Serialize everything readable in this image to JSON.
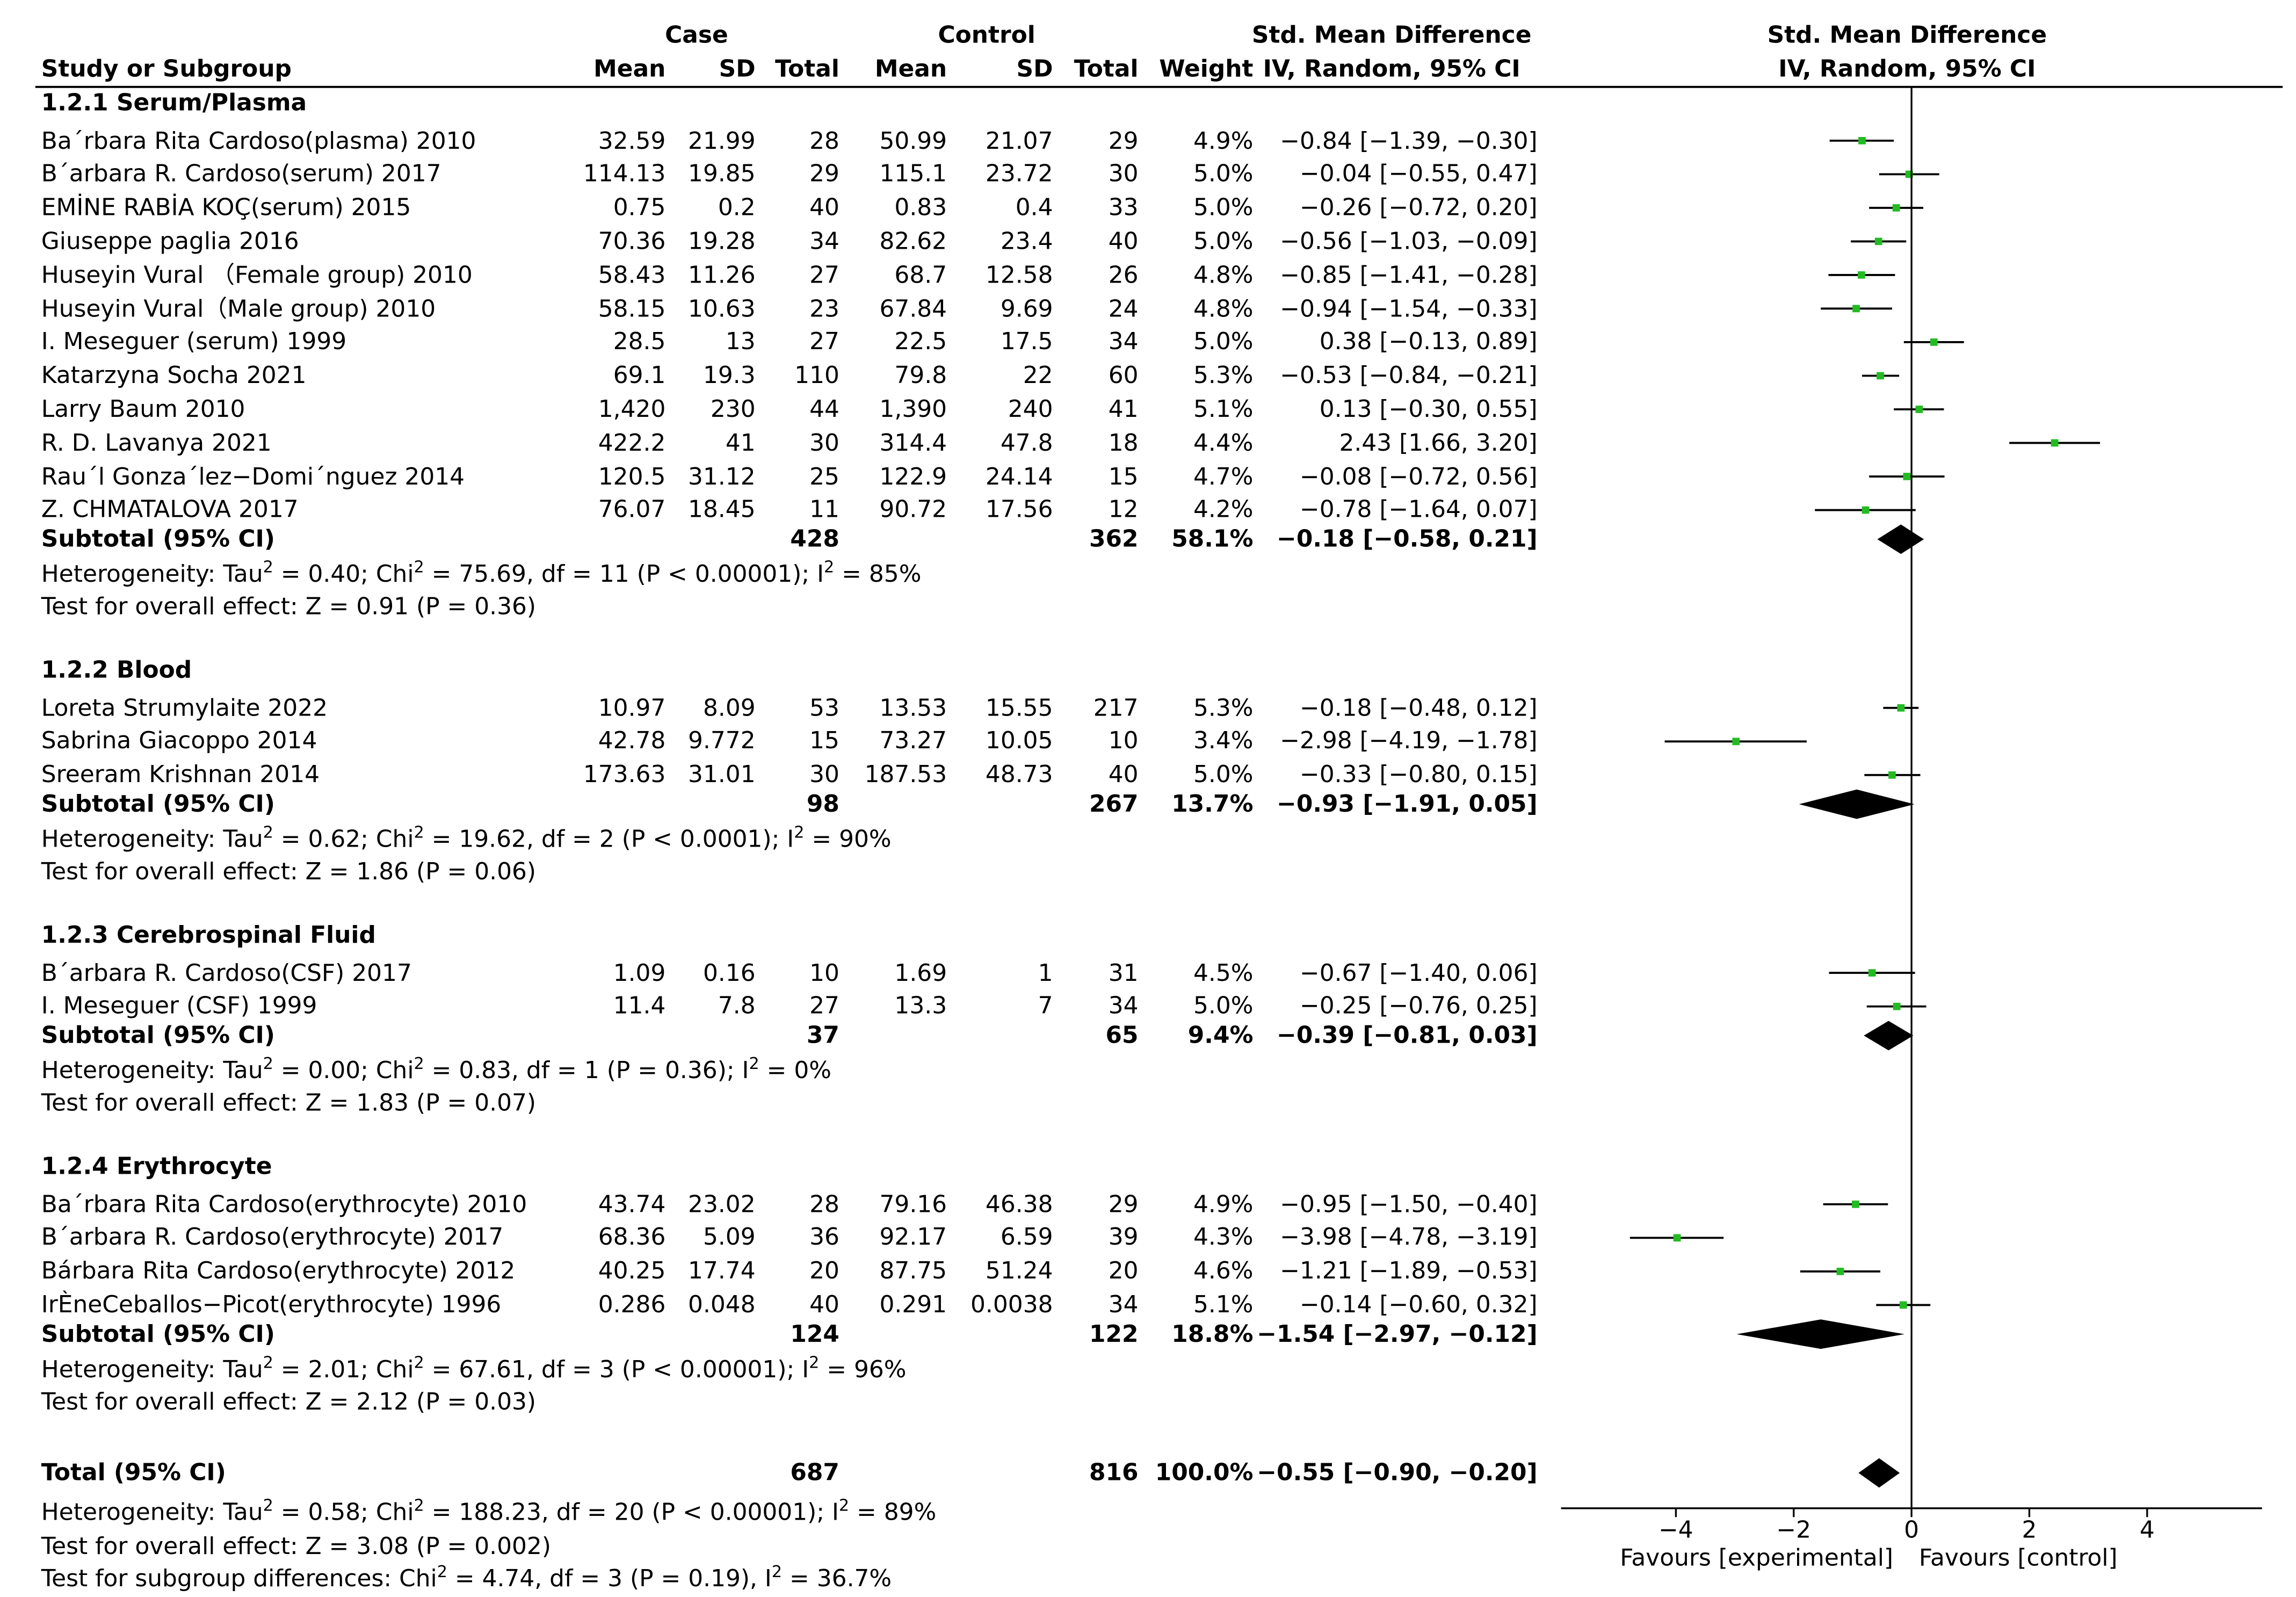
{
  "header": {
    "case_group": "Case",
    "control_group": "Control",
    "smd_table_title": "Std. Mean Difference",
    "smd_plot_title": "Std. Mean Difference",
    "col_study": "Study or Subgroup",
    "col_case_mean": "Mean",
    "col_case_sd": "SD",
    "col_case_total": "Total",
    "col_control_mean": "Mean",
    "col_control_sd": "SD",
    "col_control_total": "Total",
    "col_weight": "Weight",
    "col_ci": "IV, Random, 95% CI",
    "plot_method": "IV, Random, 95% CI"
  },
  "axis": {
    "ticks": [
      "-4",
      "-2",
      "0",
      "2",
      "4"
    ],
    "favours_left": "Favours [experimental]",
    "favours_right": "Favours [control]"
  },
  "chart_data": {
    "type": "forest",
    "title": "Std. Mean Difference",
    "method": "IV, Random, 95% CI",
    "xlim": [
      -6,
      6
    ],
    "xticks": [
      -4,
      -2,
      0,
      2,
      4
    ],
    "xlabel_left": "Favours [experimental]",
    "xlabel_right": "Favours [control]",
    "subgroups": [
      {
        "title": "1.2.1 Serum/Plasma",
        "studies": [
          {
            "name": "Ba´rbara Rita Cardoso(plasma) 2010",
            "case_mean": "32.59",
            "case_sd": "21.99",
            "case_total": "28",
            "ctrl_mean": "50.99",
            "ctrl_sd": "21.07",
            "ctrl_total": "29",
            "weight": "4.9%",
            "ci_text": "-0.84 [-1.39, -0.30]",
            "est": -0.84,
            "lo": -1.39,
            "hi": -0.3
          },
          {
            "name": "B´arbara R. Cardoso(serum) 2017",
            "case_mean": "114.13",
            "case_sd": "19.85",
            "case_total": "29",
            "ctrl_mean": "115.1",
            "ctrl_sd": "23.72",
            "ctrl_total": "30",
            "weight": "5.0%",
            "ci_text": "-0.04 [-0.55, 0.47]",
            "est": -0.04,
            "lo": -0.55,
            "hi": 0.47
          },
          {
            "name": "EMİNE RABİA KOÇ(serum) 2015",
            "case_mean": "0.75",
            "case_sd": "0.2",
            "case_total": "40",
            "ctrl_mean": "0.83",
            "ctrl_sd": "0.4",
            "ctrl_total": "33",
            "weight": "5.0%",
            "ci_text": "-0.26 [-0.72, 0.20]",
            "est": -0.26,
            "lo": -0.72,
            "hi": 0.2
          },
          {
            "name": "Giuseppe paglia 2016",
            "case_mean": "70.36",
            "case_sd": "19.28",
            "case_total": "34",
            "ctrl_mean": "82.62",
            "ctrl_sd": "23.4",
            "ctrl_total": "40",
            "weight": "5.0%",
            "ci_text": "-0.56 [-1.03, -0.09]",
            "est": -0.56,
            "lo": -1.03,
            "hi": -0.09
          },
          {
            "name": "Huseyin Vural （Female group) 2010",
            "case_mean": "58.43",
            "case_sd": "11.26",
            "case_total": "27",
            "ctrl_mean": "68.7",
            "ctrl_sd": "12.58",
            "ctrl_total": "26",
            "weight": "4.8%",
            "ci_text": "-0.85 [-1.41, -0.28]",
            "est": -0.85,
            "lo": -1.41,
            "hi": -0.28
          },
          {
            "name": "Huseyin Vural（Male group) 2010",
            "case_mean": "58.15",
            "case_sd": "10.63",
            "case_total": "23",
            "ctrl_mean": "67.84",
            "ctrl_sd": "9.69",
            "ctrl_total": "24",
            "weight": "4.8%",
            "ci_text": "-0.94 [-1.54, -0.33]",
            "est": -0.94,
            "lo": -1.54,
            "hi": -0.33
          },
          {
            "name": "I. Meseguer (serum) 1999",
            "case_mean": "28.5",
            "case_sd": "13",
            "case_total": "27",
            "ctrl_mean": "22.5",
            "ctrl_sd": "17.5",
            "ctrl_total": "34",
            "weight": "5.0%",
            "ci_text": "0.38 [-0.13, 0.89]",
            "est": 0.38,
            "lo": -0.13,
            "hi": 0.89
          },
          {
            "name": "Katarzyna Socha 2021",
            "case_mean": "69.1",
            "case_sd": "19.3",
            "case_total": "110",
            "ctrl_mean": "79.8",
            "ctrl_sd": "22",
            "ctrl_total": "60",
            "weight": "5.3%",
            "ci_text": "-0.53 [-0.84, -0.21]",
            "est": -0.53,
            "lo": -0.84,
            "hi": -0.21
          },
          {
            "name": "Larry Baum 2010",
            "case_mean": "1,420",
            "case_sd": "230",
            "case_total": "44",
            "ctrl_mean": "1,390",
            "ctrl_sd": "240",
            "ctrl_total": "41",
            "weight": "5.1%",
            "ci_text": "0.13 [-0.30, 0.55]",
            "est": 0.13,
            "lo": -0.3,
            "hi": 0.55
          },
          {
            "name": "R. D. Lavanya 2021",
            "case_mean": "422.2",
            "case_sd": "41",
            "case_total": "30",
            "ctrl_mean": "314.4",
            "ctrl_sd": "47.8",
            "ctrl_total": "18",
            "weight": "4.4%",
            "ci_text": "2.43 [1.66, 3.20]",
            "est": 2.43,
            "lo": 1.66,
            "hi": 3.2
          },
          {
            "name": "Rau´l Gonza´lez-Domi´nguez 2014",
            "case_mean": "120.5",
            "case_sd": "31.12",
            "case_total": "25",
            "ctrl_mean": "122.9",
            "ctrl_sd": "24.14",
            "ctrl_total": "15",
            "weight": "4.7%",
            "ci_text": "-0.08 [-0.72, 0.56]",
            "est": -0.08,
            "lo": -0.72,
            "hi": 0.56
          },
          {
            "name": "Z. CHMATALOVA 2017",
            "case_mean": "76.07",
            "case_sd": "18.45",
            "case_total": "11",
            "ctrl_mean": "90.72",
            "ctrl_sd": "17.56",
            "ctrl_total": "12",
            "weight": "4.2%",
            "ci_text": "-0.78 [-1.64, 0.07]",
            "est": -0.78,
            "lo": -1.64,
            "hi": 0.07
          }
        ],
        "subtotal": {
          "label": "Subtotal (95% CI)",
          "case_total": "428",
          "ctrl_total": "362",
          "weight": "58.1%",
          "ci_text": "-0.18 [-0.58, 0.21]",
          "est": -0.18,
          "lo": -0.58,
          "hi": 0.21
        },
        "heterogeneity": {
          "pre": "Heterogeneity: Tau",
          "tau2": "0.40",
          "chi2": "75.69",
          "df": "11",
          "p": "P < 0.00001",
          "i2": "85%"
        },
        "overall": "Test for overall effect: Z = 0.91 (P = 0.36)"
      },
      {
        "title": "1.2.2 Blood",
        "studies": [
          {
            "name": "Loreta Strumylaite 2022",
            "case_mean": "10.97",
            "case_sd": "8.09",
            "case_total": "53",
            "ctrl_mean": "13.53",
            "ctrl_sd": "15.55",
            "ctrl_total": "217",
            "weight": "5.3%",
            "ci_text": "-0.18 [-0.48, 0.12]",
            "est": -0.18,
            "lo": -0.48,
            "hi": 0.12
          },
          {
            "name": "Sabrina Giacoppo 2014",
            "case_mean": "42.78",
            "case_sd": "9.772",
            "case_total": "15",
            "ctrl_mean": "73.27",
            "ctrl_sd": "10.05",
            "ctrl_total": "10",
            "weight": "3.4%",
            "ci_text": "-2.98 [-4.19, -1.78]",
            "est": -2.98,
            "lo": -4.19,
            "hi": -1.78
          },
          {
            "name": "Sreeram Krishnan 2014",
            "case_mean": "173.63",
            "case_sd": "31.01",
            "case_total": "30",
            "ctrl_mean": "187.53",
            "ctrl_sd": "48.73",
            "ctrl_total": "40",
            "weight": "5.0%",
            "ci_text": "-0.33 [-0.80, 0.15]",
            "est": -0.33,
            "lo": -0.8,
            "hi": 0.15
          }
        ],
        "subtotal": {
          "label": "Subtotal (95% CI)",
          "case_total": "98",
          "ctrl_total": "267",
          "weight": "13.7%",
          "ci_text": "-0.93 [-1.91, 0.05]",
          "est": -0.93,
          "lo": -1.91,
          "hi": 0.05
        },
        "heterogeneity": {
          "pre": "Heterogeneity: Tau",
          "tau2": "0.62",
          "chi2": "19.62",
          "df": "2",
          "p": "P < 0.0001",
          "i2": "90%"
        },
        "overall": "Test for overall effect: Z = 1.86 (P = 0.06)"
      },
      {
        "title": "1.2.3 Cerebrospinal Fluid",
        "studies": [
          {
            "name": "B´arbara R. Cardoso(CSF) 2017",
            "case_mean": "1.09",
            "case_sd": "0.16",
            "case_total": "10",
            "ctrl_mean": "1.69",
            "ctrl_sd": "1",
            "ctrl_total": "31",
            "weight": "4.5%",
            "ci_text": "-0.67 [-1.40, 0.06]",
            "est": -0.67,
            "lo": -1.4,
            "hi": 0.06
          },
          {
            "name": "I. Meseguer (CSF) 1999",
            "case_mean": "11.4",
            "case_sd": "7.8",
            "case_total": "27",
            "ctrl_mean": "13.3",
            "ctrl_sd": "7",
            "ctrl_total": "34",
            "weight": "5.0%",
            "ci_text": "-0.25 [-0.76, 0.25]",
            "est": -0.25,
            "lo": -0.76,
            "hi": 0.25
          }
        ],
        "subtotal": {
          "label": "Subtotal (95% CI)",
          "case_total": "37",
          "ctrl_total": "65",
          "weight": "9.4%",
          "ci_text": "-0.39 [-0.81, 0.03]",
          "est": -0.39,
          "lo": -0.81,
          "hi": 0.03
        },
        "heterogeneity": {
          "pre": "Heterogeneity: Tau",
          "tau2": "0.00",
          "chi2": "0.83",
          "df": "1",
          "p": "P = 0.36",
          "i2": "0%"
        },
        "overall": "Test for overall effect: Z = 1.83 (P = 0.07)"
      },
      {
        "title": "1.2.4 Erythrocyte",
        "studies": [
          {
            "name": "Ba´rbara Rita Cardoso(erythrocyte) 2010",
            "case_mean": "43.74",
            "case_sd": "23.02",
            "case_total": "28",
            "ctrl_mean": "79.16",
            "ctrl_sd": "46.38",
            "ctrl_total": "29",
            "weight": "4.9%",
            "ci_text": "-0.95 [-1.50, -0.40]",
            "est": -0.95,
            "lo": -1.5,
            "hi": -0.4
          },
          {
            "name": "B´arbara R. Cardoso(erythrocyte) 2017",
            "case_mean": "68.36",
            "case_sd": "5.09",
            "case_total": "36",
            "ctrl_mean": "92.17",
            "ctrl_sd": "6.59",
            "ctrl_total": "39",
            "weight": "4.3%",
            "ci_text": "-3.98 [-4.78, -3.19]",
            "est": -3.98,
            "lo": -4.78,
            "hi": -3.19
          },
          {
            "name": "Bárbara Rita Cardoso(erythrocyte) 2012",
            "case_mean": "40.25",
            "case_sd": "17.74",
            "case_total": "20",
            "ctrl_mean": "87.75",
            "ctrl_sd": "51.24",
            "ctrl_total": "20",
            "weight": "4.6%",
            "ci_text": "-1.21 [-1.89, -0.53]",
            "est": -1.21,
            "lo": -1.89,
            "hi": -0.53
          },
          {
            "name": "IrÈneCeballos-Picot(erythrocyte) 1996",
            "case_mean": "0.286",
            "case_sd": "0.048",
            "case_total": "40",
            "ctrl_mean": "0.291",
            "ctrl_sd": "0.0038",
            "ctrl_total": "34",
            "weight": "5.1%",
            "ci_text": "-0.14 [-0.60, 0.32]",
            "est": -0.14,
            "lo": -0.6,
            "hi": 0.32
          }
        ],
        "subtotal": {
          "label": "Subtotal (95% CI)",
          "case_total": "124",
          "ctrl_total": "122",
          "weight": "18.8%",
          "ci_text": "-1.54 [-2.97, -0.12]",
          "est": -1.54,
          "lo": -2.97,
          "hi": -0.12
        },
        "heterogeneity": {
          "pre": "Heterogeneity: Tau",
          "tau2": "2.01",
          "chi2": "67.61",
          "df": "3",
          "p": "P < 0.00001",
          "i2": "96%"
        },
        "overall": "Test for overall effect: Z = 2.12 (P = 0.03)"
      }
    ],
    "total": {
      "label": "Total (95% CI)",
      "case_total": "687",
      "ctrl_total": "816",
      "weight": "100.0%",
      "ci_text": "-0.55 [-0.90, -0.20]",
      "est": -0.55,
      "lo": -0.9,
      "hi": -0.2,
      "heterogeneity": {
        "pre": "Heterogeneity: Tau",
        "tau2": "0.58",
        "chi2": "188.23",
        "df": "20",
        "p": "P < 0.00001",
        "i2": "89%"
      },
      "overall": "Test for overall effect: Z = 3.08 (P = 0.002)",
      "subgroup_diff": {
        "pre": "Test for subgroup differences: Chi",
        "chi2": "4.74",
        "df": "3",
        "p": "P = 0.19",
        "i2": "36.7%"
      }
    },
    "colors": {
      "point": "#22bb22",
      "line": "#000000",
      "diamond": "#000000"
    }
  }
}
